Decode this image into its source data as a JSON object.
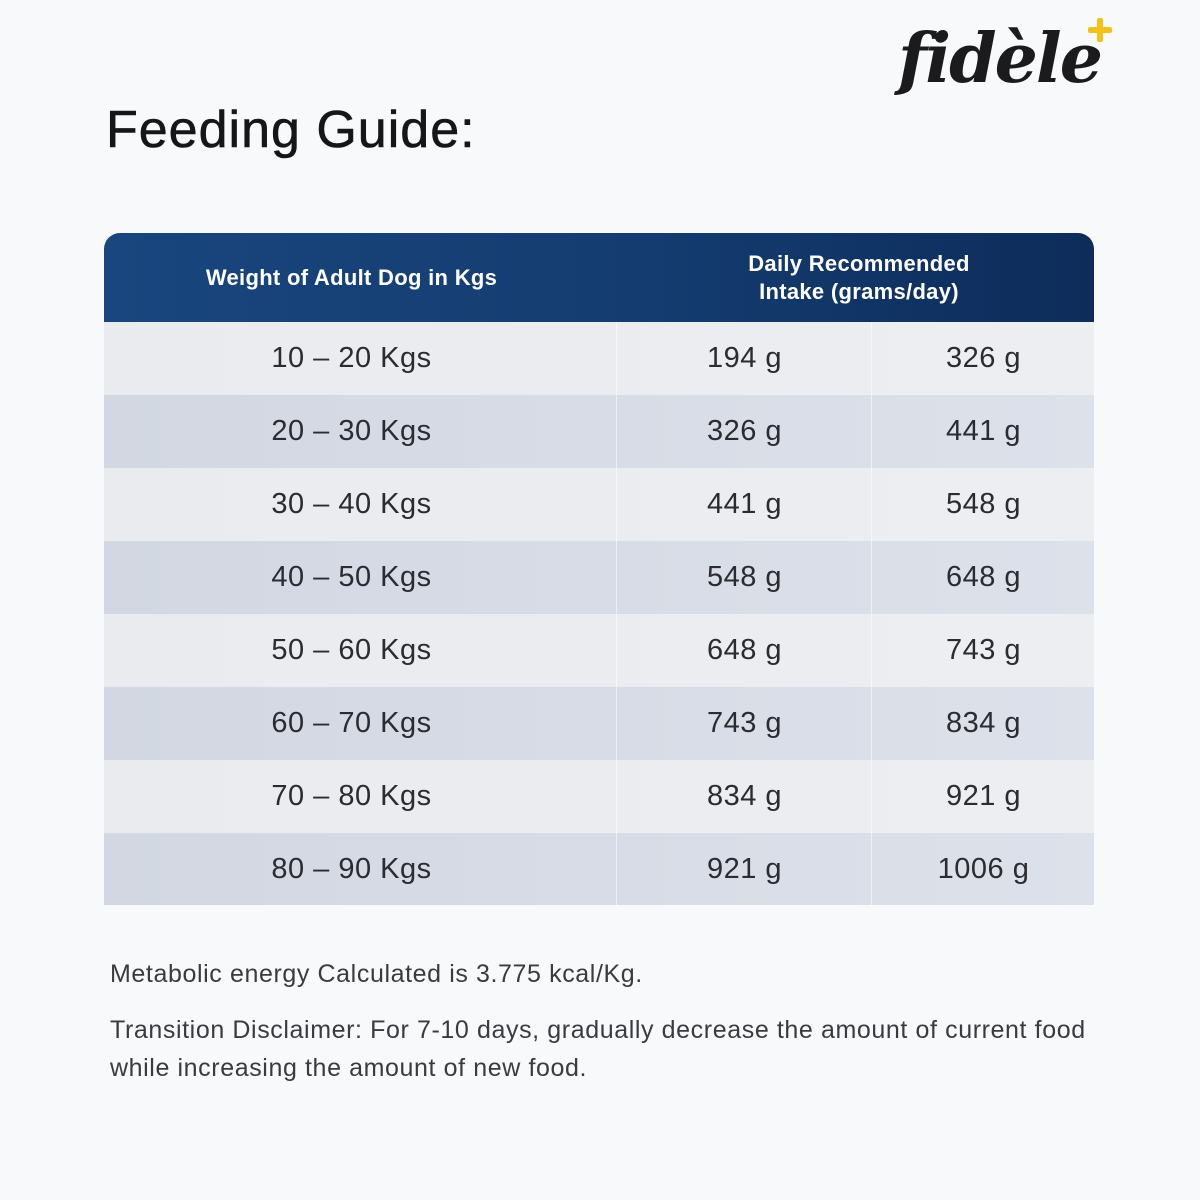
{
  "brand": {
    "logo_text": "fidèle",
    "plus_color": "#f2c21b"
  },
  "page": {
    "title": "Feeding Guide:"
  },
  "table": {
    "header_color": "#143c70",
    "headers": {
      "weight": "Weight of Adult Dog in Kgs",
      "intake_line1": "Daily Recommended",
      "intake_line2": "Intake (grams/day)"
    },
    "rows": [
      {
        "weight": "10 – 20 Kgs",
        "min": "194 g",
        "max": "326 g"
      },
      {
        "weight": "20 – 30 Kgs",
        "min": "326 g",
        "max": "441 g"
      },
      {
        "weight": "30 – 40 Kgs",
        "min": "441 g",
        "max": "548 g"
      },
      {
        "weight": "40 – 50 Kgs",
        "min": "548 g",
        "max": "648 g"
      },
      {
        "weight": "50 – 60 Kgs",
        "min": "648 g",
        "max": "743 g"
      },
      {
        "weight": "60 – 70 Kgs",
        "min": "743 g",
        "max": "834 g"
      },
      {
        "weight": "70 – 80 Kgs",
        "min": "834 g",
        "max": "921 g"
      },
      {
        "weight": "80 – 90 Kgs",
        "min": "921 g",
        "max": "1006 g"
      }
    ]
  },
  "notes": {
    "energy": "Metabolic energy Calculated is 3.775 kcal/Kg.",
    "transition": "Transition Disclaimer: For 7-10 days, gradually decrease the amount of current food while increasing the amount of new food."
  }
}
